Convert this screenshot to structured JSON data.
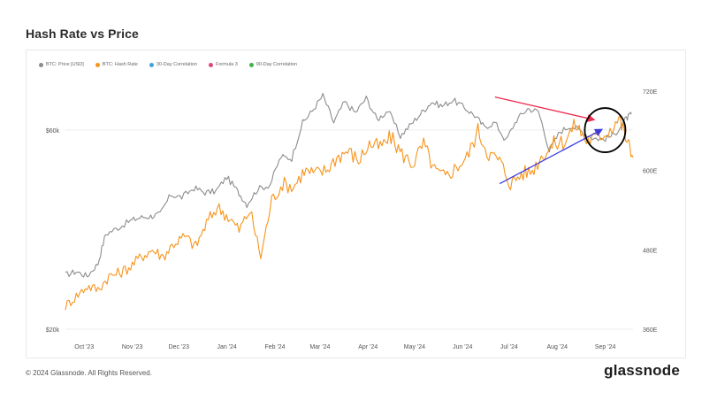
{
  "page": {
    "title": "Hash Rate vs Price",
    "footer": "© 2024 Glassnode. All Rights Reserved.",
    "brand": "glassnode"
  },
  "legend": [
    {
      "label": "BTC: Price [USD]",
      "color": "#8c8c8c"
    },
    {
      "label": "BTC: Hash Rate",
      "color": "#f7931a"
    },
    {
      "label": "30-Day Correlation",
      "color": "#3ba5e0"
    },
    {
      "label": "Formula 3",
      "color": "#e0457b"
    },
    {
      "label": "90-Day Correlation",
      "color": "#3fb24a"
    }
  ],
  "chart_data": {
    "type": "line",
    "x_ticks": [
      "Oct '23",
      "Nov '23",
      "Dec '23",
      "Jan '24",
      "Feb '24",
      "Mar '24",
      "Apr '24",
      "May '24",
      "Jun '24",
      "Jul '24",
      "Aug '24",
      "Sep '24"
    ],
    "y_left": {
      "scale": "log",
      "ticks": [
        "$20k",
        "$60k"
      ],
      "range": [
        20000,
        80000
      ]
    },
    "y_right": {
      "ticks": [
        "720E",
        "600E",
        "480E",
        "360E"
      ],
      "range": [
        360,
        740
      ]
    },
    "grid": "horizontal",
    "series": [
      {
        "name": "BTC: Price [USD]",
        "color": "#8c8c8c",
        "axis": "left",
        "x": [
          "2023-09-28",
          "2023-10-05",
          "2023-10-12",
          "2023-10-19",
          "2023-10-24",
          "2023-11-01",
          "2023-11-09",
          "2023-11-15",
          "2023-11-22",
          "2023-11-28",
          "2023-12-05",
          "2023-12-12",
          "2023-12-20",
          "2023-12-27",
          "2024-01-03",
          "2024-01-10",
          "2024-01-17",
          "2024-01-23",
          "2024-01-30",
          "2024-02-07",
          "2024-02-14",
          "2024-02-21",
          "2024-02-28",
          "2024-03-05",
          "2024-03-12",
          "2024-03-19",
          "2024-03-26",
          "2024-04-02",
          "2024-04-09",
          "2024-04-16",
          "2024-04-23",
          "2024-05-01",
          "2024-05-08",
          "2024-05-15",
          "2024-05-21",
          "2024-05-28",
          "2024-06-04",
          "2024-06-11",
          "2024-06-18",
          "2024-06-24",
          "2024-07-01",
          "2024-07-08",
          "2024-07-15",
          "2024-07-22",
          "2024-07-29",
          "2024-08-05",
          "2024-08-12",
          "2024-08-19",
          "2024-08-26",
          "2024-09-02",
          "2024-09-09",
          "2024-09-16",
          "2024-09-23",
          "2024-09-27"
        ],
        "y": [
          27000,
          27500,
          26800,
          28700,
          33800,
          35000,
          36400,
          37000,
          37300,
          37700,
          42000,
          41400,
          43600,
          42500,
          42800,
          46300,
          42800,
          39800,
          43300,
          44400,
          51800,
          51300,
          62500,
          66500,
          72500,
          62500,
          70000,
          66000,
          71500,
          63500,
          66800,
          58000,
          62000,
          66200,
          70000,
          68500,
          70800,
          68000,
          65000,
          61000,
          62500,
          56500,
          63500,
          67500,
          66500,
          53500,
          59500,
          61500,
          59500,
          57500,
          57000,
          58500,
          63500,
          65500
        ]
      },
      {
        "name": "BTC: Hash Rate",
        "color": "#f7931a",
        "axis": "right",
        "x": [
          "2023-09-28",
          "2023-10-05",
          "2023-10-12",
          "2023-10-19",
          "2023-10-26",
          "2023-11-02",
          "2023-11-09",
          "2023-11-16",
          "2023-11-23",
          "2023-11-30",
          "2023-12-07",
          "2023-12-14",
          "2023-12-21",
          "2023-12-28",
          "2024-01-04",
          "2024-01-11",
          "2024-01-18",
          "2024-01-25",
          "2024-02-01",
          "2024-02-08",
          "2024-02-15",
          "2024-02-22",
          "2024-02-29",
          "2024-03-07",
          "2024-03-14",
          "2024-03-21",
          "2024-03-28",
          "2024-04-04",
          "2024-04-11",
          "2024-04-18",
          "2024-04-25",
          "2024-05-02",
          "2024-05-09",
          "2024-05-16",
          "2024-05-23",
          "2024-05-30",
          "2024-06-06",
          "2024-06-13",
          "2024-06-20",
          "2024-06-27",
          "2024-07-04",
          "2024-07-11",
          "2024-07-18",
          "2024-07-25",
          "2024-08-01",
          "2024-08-08",
          "2024-08-15",
          "2024-08-22",
          "2024-08-29",
          "2024-09-05",
          "2024-09-12",
          "2024-09-19",
          "2024-09-24",
          "2024-09-28"
        ],
        "y": [
          395,
          410,
          425,
          420,
          440,
          445,
          455,
          470,
          480,
          470,
          490,
          500,
          485,
          520,
          545,
          530,
          510,
          540,
          470,
          555,
          580,
          575,
          600,
          595,
          600,
          620,
          630,
          615,
          640,
          635,
          650,
          625,
          610,
          640,
          600,
          590,
          605,
          620,
          660,
          625,
          615,
          580,
          595,
          600,
          625,
          640,
          645,
          670,
          645,
          650,
          660,
          680,
          645,
          620
        ]
      }
    ],
    "annotations": [
      {
        "type": "arrow",
        "color": "#ee2c4e",
        "from": [
          "2024-07-01",
          72000
        ],
        "to": [
          "2024-09-03",
          63500
        ]
      },
      {
        "type": "arrow",
        "color": "#3a3ae0",
        "from": [
          "2024-07-04",
          580
        ],
        "to": [
          "2024-09-08",
          662
        ]
      },
      {
        "type": "circle",
        "color": "#000000",
        "center": [
          "2024-09-10",
          661
        ]
      }
    ]
  }
}
